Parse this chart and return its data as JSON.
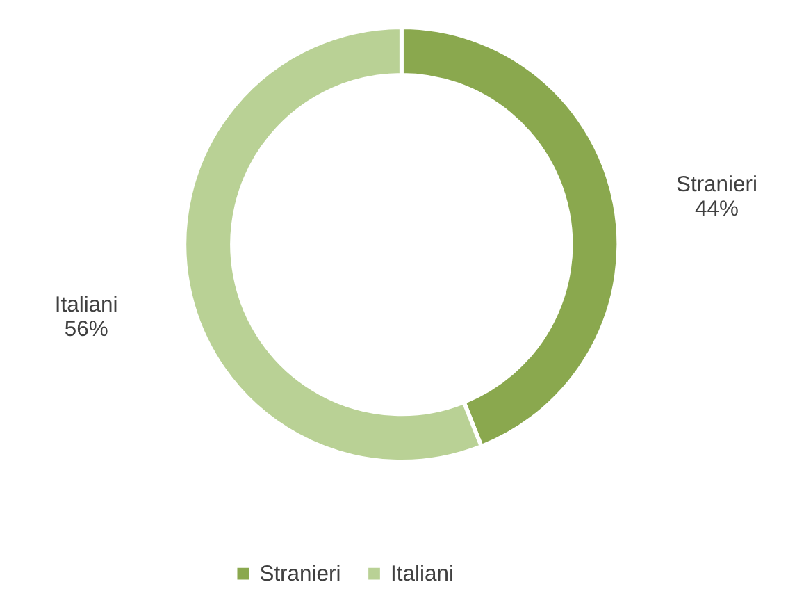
{
  "chart_data": {
    "type": "donut",
    "categories": [
      "Stranieri",
      "Italiani"
    ],
    "values": [
      44,
      56
    ],
    "colors": [
      "#8aa84e",
      "#b9d195"
    ],
    "value_labels": [
      "44%",
      "56%"
    ],
    "legend": "bottom"
  }
}
